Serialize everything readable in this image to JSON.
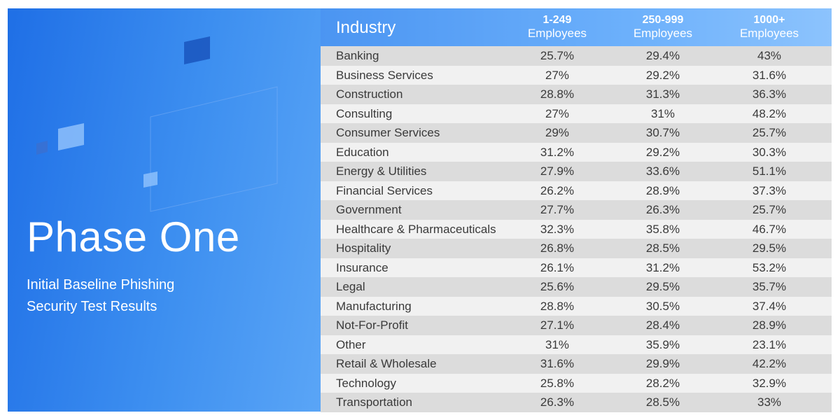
{
  "panel": {
    "title": "Phase One",
    "subtitle_lines": [
      "Initial Baseline Phishing",
      "Security Test Results"
    ]
  },
  "colors": {
    "panel_blue": "#1f6fe6",
    "header_blue": "#6cb0fb",
    "row_dark": "#dcdcdc",
    "row_light": "#f1f1f1"
  },
  "chart_data": {
    "type": "table",
    "columns": [
      {
        "label": "Industry"
      },
      {
        "top": "1-249",
        "bottom": "Employees"
      },
      {
        "top": "250-999",
        "bottom": "Employees"
      },
      {
        "top": "1000+",
        "bottom": "Employees"
      }
    ],
    "rows": [
      {
        "industry": "Banking",
        "values": [
          "25.7%",
          "29.4%",
          "43%"
        ]
      },
      {
        "industry": "Business Services",
        "values": [
          "27%",
          "29.2%",
          "31.6%"
        ]
      },
      {
        "industry": "Construction",
        "values": [
          "28.8%",
          "31.3%",
          "36.3%"
        ]
      },
      {
        "industry": "Consulting",
        "values": [
          "27%",
          "31%",
          "48.2%"
        ]
      },
      {
        "industry": "Consumer Services",
        "values": [
          "29%",
          "30.7%",
          "25.7%"
        ]
      },
      {
        "industry": "Education",
        "values": [
          "31.2%",
          "29.2%",
          "30.3%"
        ]
      },
      {
        "industry": "Energy & Utilities",
        "values": [
          "27.9%",
          "33.6%",
          "51.1%"
        ]
      },
      {
        "industry": "Financial Services",
        "values": [
          "26.2%",
          "28.9%",
          "37.3%"
        ]
      },
      {
        "industry": "Government",
        "values": [
          "27.7%",
          "26.3%",
          "25.7%"
        ]
      },
      {
        "industry": "Healthcare & Pharmaceuticals",
        "values": [
          "32.3%",
          "35.8%",
          "46.7%"
        ]
      },
      {
        "industry": "Hospitality",
        "values": [
          "26.8%",
          "28.5%",
          "29.5%"
        ]
      },
      {
        "industry": "Insurance",
        "values": [
          "26.1%",
          "31.2%",
          "53.2%"
        ]
      },
      {
        "industry": "Legal",
        "values": [
          "25.6%",
          "29.5%",
          "35.7%"
        ]
      },
      {
        "industry": "Manufacturing",
        "values": [
          "28.8%",
          "30.5%",
          "37.4%"
        ]
      },
      {
        "industry": "Not-For-Profit",
        "values": [
          "27.1%",
          "28.4%",
          "28.9%"
        ]
      },
      {
        "industry": "Other",
        "values": [
          "31%",
          "35.9%",
          "23.1%"
        ]
      },
      {
        "industry": "Retail & Wholesale",
        "values": [
          "31.6%",
          "29.9%",
          "42.2%"
        ]
      },
      {
        "industry": "Technology",
        "values": [
          "25.8%",
          "28.2%",
          "32.9%"
        ]
      },
      {
        "industry": "Transportation",
        "values": [
          "26.3%",
          "28.5%",
          "33%"
        ]
      }
    ]
  }
}
